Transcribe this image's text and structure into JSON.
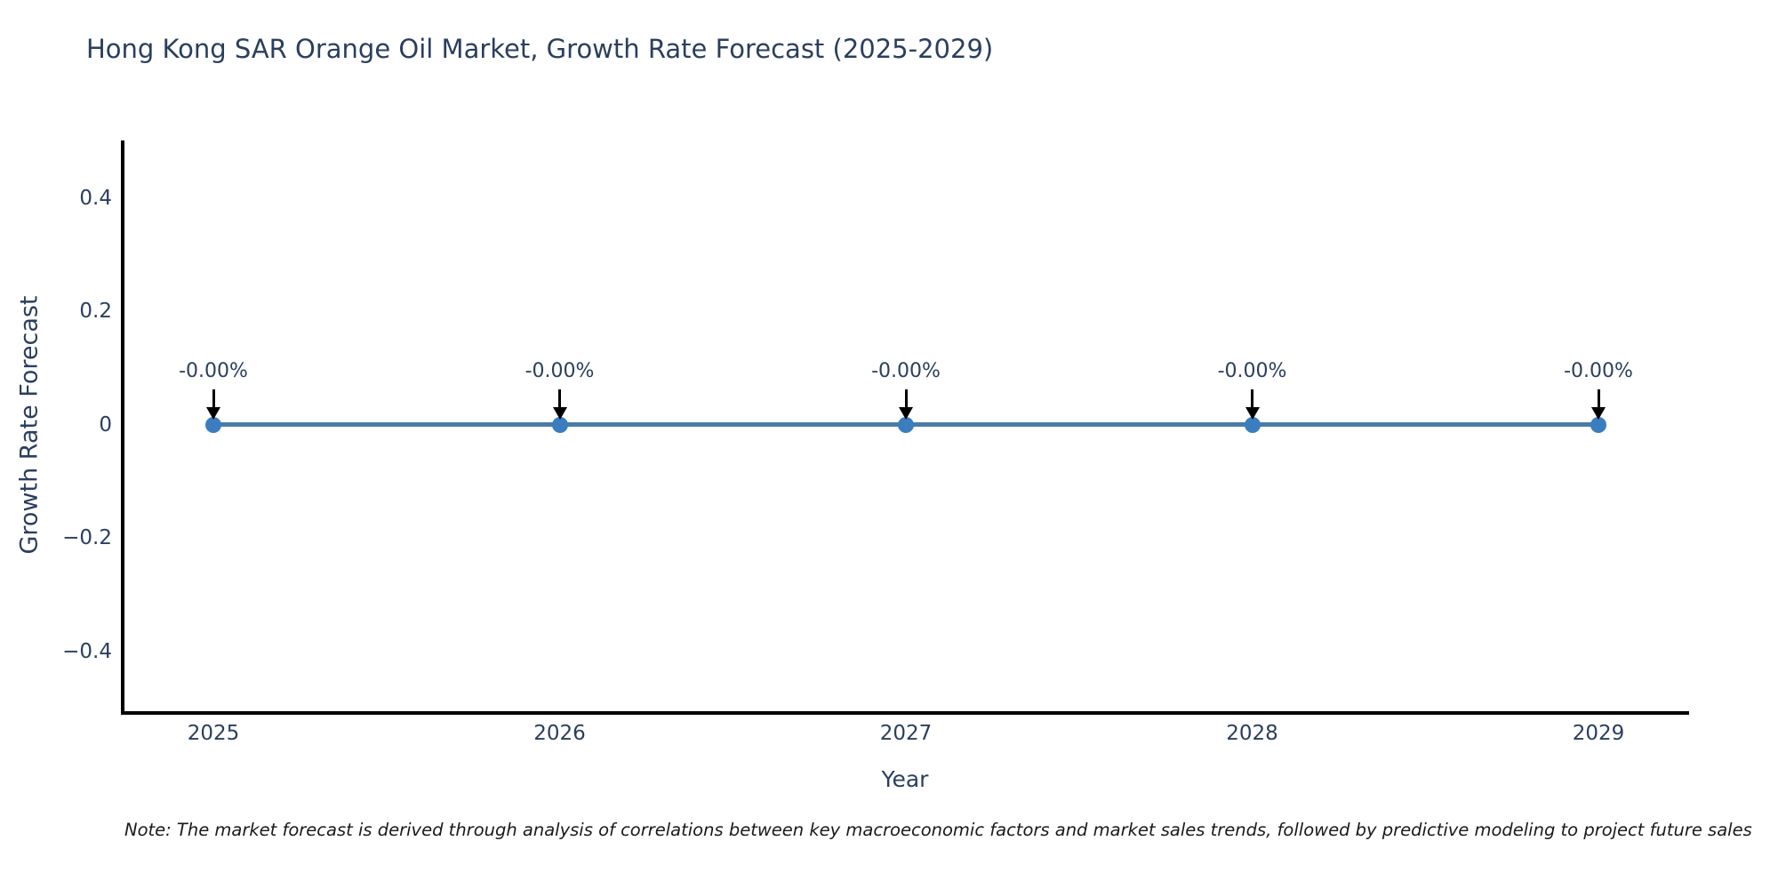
{
  "chart_data": {
    "type": "line",
    "title": "Hong Kong SAR Orange Oil Market, Growth Rate Forecast (2025-2029)",
    "xlabel": "Year",
    "ylabel": "Growth Rate Forecast",
    "x": [
      2025,
      2026,
      2027,
      2028,
      2029
    ],
    "series": [
      {
        "name": "Growth Rate Forecast",
        "values": [
          0,
          0,
          0,
          0,
          0
        ]
      }
    ],
    "point_labels": [
      "-0.00%",
      "-0.00%",
      "-0.00%",
      "-0.00%",
      "-0.00%"
    ],
    "ylim": [
      -0.5,
      0.5
    ],
    "yticks": {
      "values": [
        0.4,
        0.2,
        0,
        -0.2,
        -0.4
      ],
      "labels": [
        "0.4",
        "0.2",
        "0",
        "−0.2",
        "−0.4"
      ]
    },
    "xtick_labels": [
      "2025",
      "2026",
      "2027",
      "2028",
      "2029"
    ],
    "grid": false,
    "legend_position": "none",
    "line_color": "#4a7ba6",
    "marker_color": "#3a7ebf",
    "annotation_arrow_color": "#000000",
    "title_color": "#2a3f5f",
    "axis_color": "#000000"
  },
  "footnote": "Note: The market forecast is derived through analysis of correlations between key macroeconomic factors and market sales trends, followed by predictive modeling to project future sales"
}
